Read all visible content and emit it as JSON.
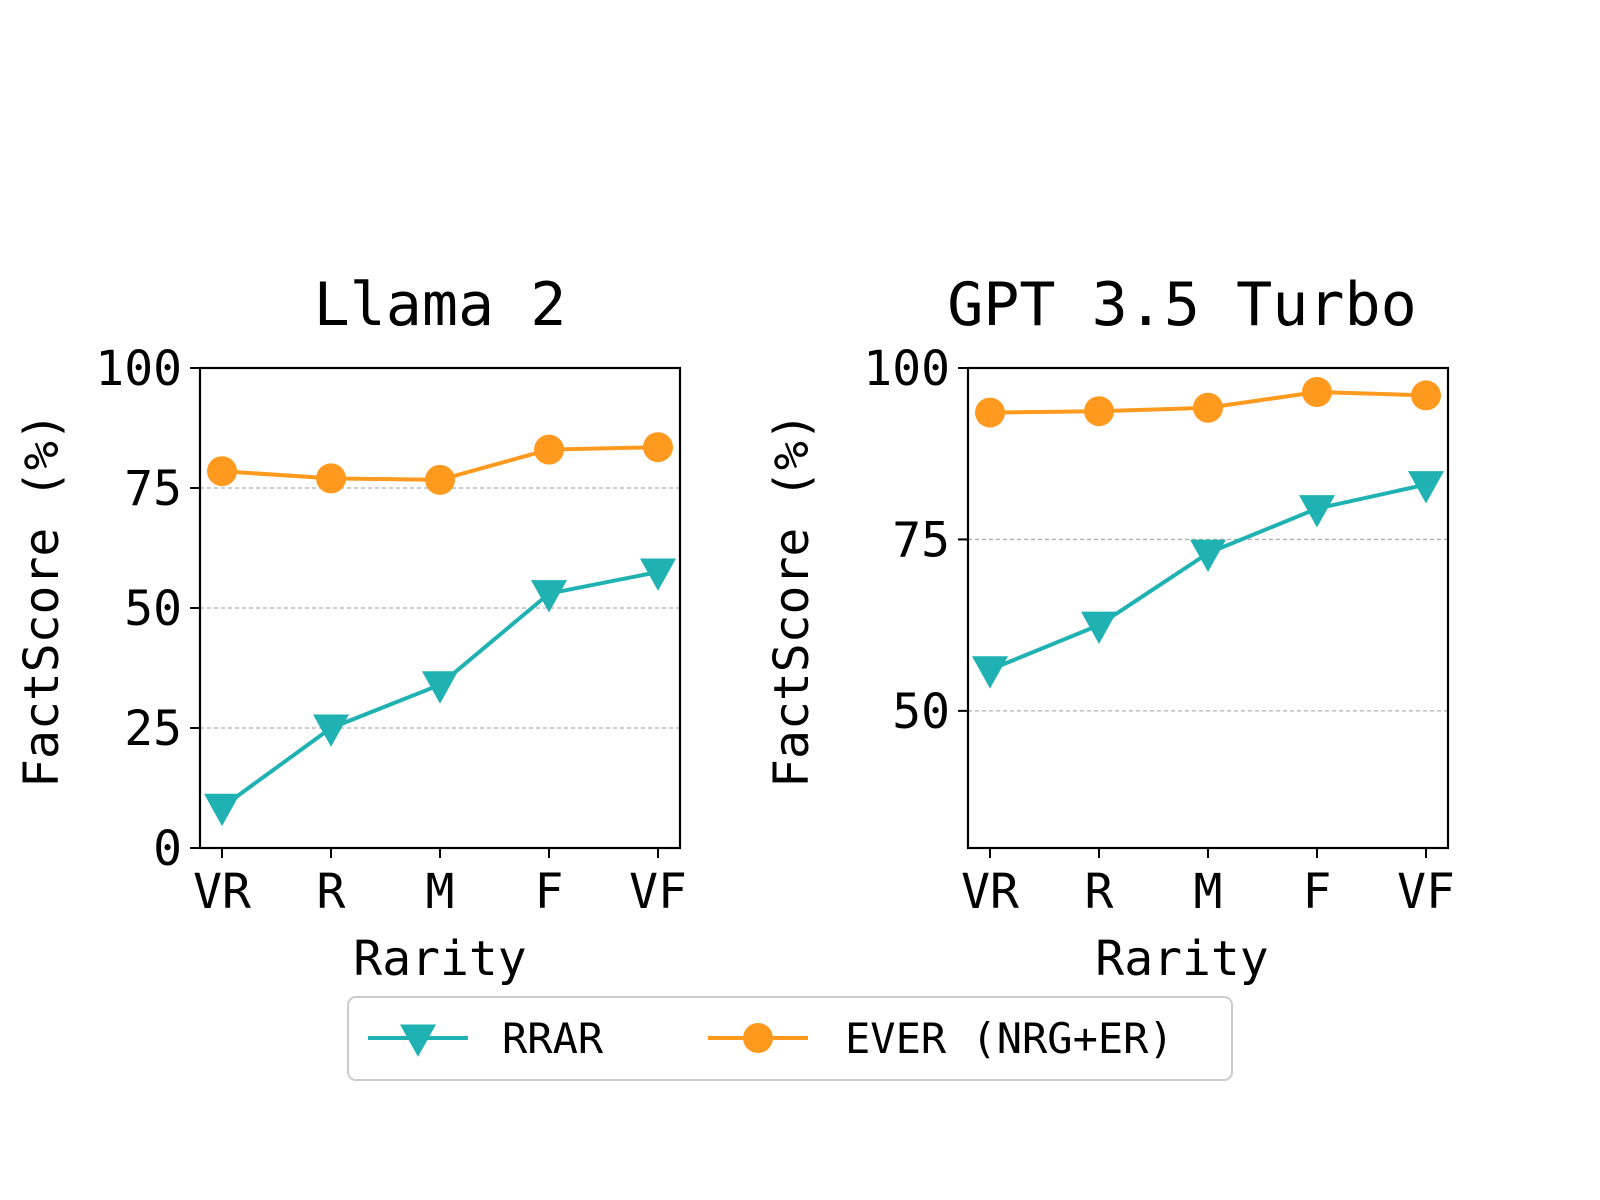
{
  "chart_data": [
    {
      "type": "line",
      "title": "Llama 2",
      "xlabel": "Rarity",
      "ylabel": "FactScore (%)",
      "categories": [
        "VR",
        "R",
        "M",
        "F",
        "VF"
      ],
      "ylim": [
        0,
        100
      ],
      "yticks": [
        0,
        25,
        50,
        75,
        100
      ],
      "grid": "horizontal dashed",
      "series": [
        {
          "name": "RRAR",
          "values": [
            8.5,
            25.0,
            34.0,
            53.0,
            57.5
          ]
        },
        {
          "name": "EVER (NRG+ER)",
          "values": [
            78.5,
            77.0,
            76.7,
            83.0,
            83.5
          ]
        }
      ]
    },
    {
      "type": "line",
      "title": "GPT 3.5 Turbo",
      "xlabel": "Rarity",
      "ylabel": "FactScore (%)",
      "categories": [
        "VR",
        "R",
        "M",
        "F",
        "VF"
      ],
      "ylim": [
        30,
        100
      ],
      "yticks": [
        50,
        75,
        100
      ],
      "grid": "horizontal dashed",
      "series": [
        {
          "name": "RRAR",
          "values": [
            56.0,
            62.5,
            73.0,
            79.5,
            83.0
          ]
        },
        {
          "name": "EVER (NRG+ER)",
          "values": [
            93.5,
            93.7,
            94.2,
            96.5,
            96.0
          ]
        }
      ]
    }
  ],
  "legend": {
    "placement": "bottom-center",
    "entries": [
      {
        "label": "RRAR",
        "color": "#20b2b2",
        "marker": "triangle-down"
      },
      {
        "label": "EVER (NRG+ER)",
        "color": "#ff9a1f",
        "marker": "circle"
      }
    ]
  },
  "colors": {
    "rrar": "#20b2b2",
    "ever": "#ff9a1f",
    "grid": "#b0b0b0"
  }
}
